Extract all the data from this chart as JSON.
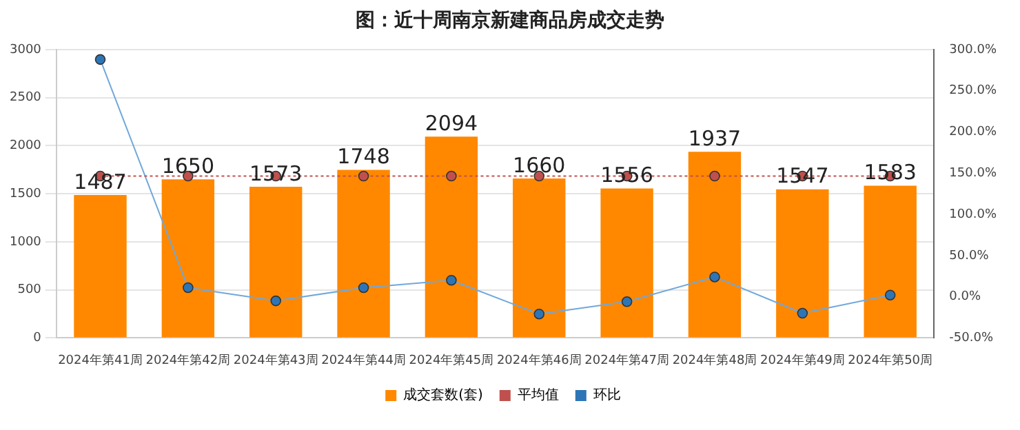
{
  "chart_data": {
    "type": "bar",
    "title": "图：近十周南京新建商品房成交走势",
    "categories": [
      "2024年第41周",
      "2024年第42周",
      "2024年第43周",
      "2024年第44周",
      "2024年第45周",
      "2024年第46周",
      "2024年第47周",
      "2024年第48周",
      "2024年第49周",
      "2024年第50周"
    ],
    "series": [
      {
        "name": "成交套数(套)",
        "color": "#ff8800",
        "data_labels": true,
        "values": [
          1487,
          1650,
          1573,
          1748,
          2094,
          1660,
          1556,
          1937,
          1547,
          1583
        ]
      },
      {
        "name": "平均值",
        "type": "line",
        "color": "#c0504d",
        "line_style": "dotted",
        "marker": "circle",
        "values": [
          1684,
          1684,
          1684,
          1684,
          1684,
          1684,
          1684,
          1684,
          1684,
          1684
        ]
      },
      {
        "name": "环比",
        "type": "line",
        "axis": "y2",
        "color": "#2e75b6",
        "line_style": "solid",
        "marker": "circle",
        "values": [
          288,
          11,
          -5,
          11,
          20,
          -21,
          -6,
          24,
          -20,
          2
        ]
      }
    ],
    "ylim": [
      0,
      3000
    ],
    "yticks": [
      0,
      500,
      1000,
      1500,
      2000,
      2500,
      3000
    ],
    "y2lim": [
      -50,
      300
    ],
    "y2ticks": [
      {
        "value": -50,
        "label": "-50.0%"
      },
      {
        "value": 0,
        "label": "0.0%"
      },
      {
        "value": 50,
        "label": "50.0%"
      },
      {
        "value": 100,
        "label": "100.0%"
      },
      {
        "value": 150,
        "label": "150.0%"
      },
      {
        "value": 200,
        "label": "200.0%"
      },
      {
        "value": 250,
        "label": "250.0%"
      },
      {
        "value": 300,
        "label": "300.0%"
      }
    ],
    "grid": "y",
    "legend": "bottom"
  }
}
